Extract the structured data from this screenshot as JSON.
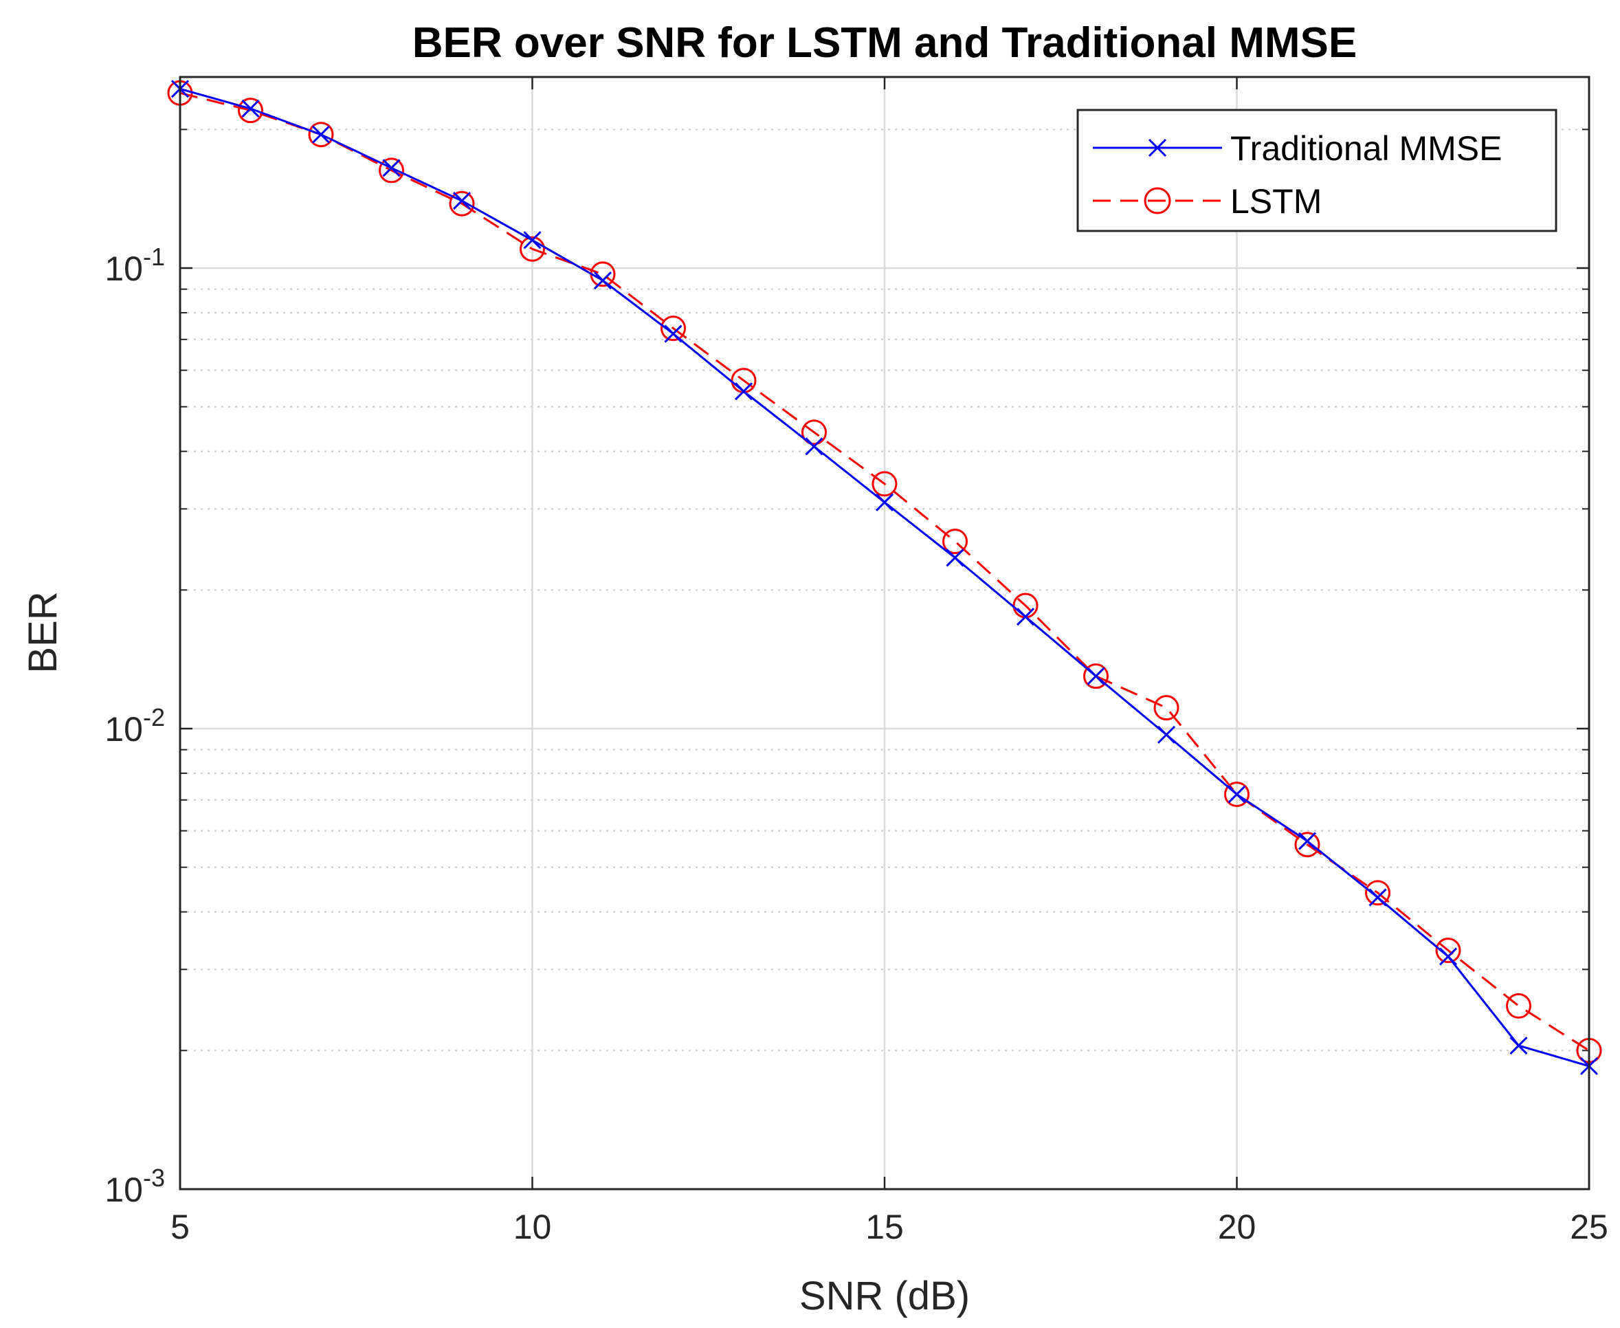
{
  "chart_data": {
    "type": "line",
    "title": "BER over SNR for LSTM and Traditional MMSE",
    "xlabel": "SNR (dB)",
    "ylabel": "BER",
    "xlim": [
      5,
      25
    ],
    "ylim": [
      0.001,
      0.26
    ],
    "yscale": "log",
    "grid": true,
    "legend_position": "top-right",
    "x_ticks": [
      5,
      10,
      15,
      20,
      25
    ],
    "x_tick_labels": [
      "5",
      "10",
      "15",
      "20",
      "25"
    ],
    "y_ticks": [
      0.001,
      0.01,
      0.1
    ],
    "y_tick_labels": [
      {
        "base": "10",
        "exp": "-3"
      },
      {
        "base": "10",
        "exp": "-2"
      },
      {
        "base": "10",
        "exp": "-1"
      }
    ],
    "x": [
      5,
      6,
      7,
      8,
      9,
      10,
      11,
      12,
      13,
      14,
      15,
      16,
      17,
      18,
      19,
      20,
      21,
      22,
      23,
      24,
      25
    ],
    "series": [
      {
        "name": "Traditional MMSE",
        "color": "#0000ff",
        "marker": "x",
        "line_style": "solid",
        "values": [
          0.245,
          0.222,
          0.195,
          0.165,
          0.14,
          0.115,
          0.094,
          0.072,
          0.054,
          0.041,
          0.031,
          0.0235,
          0.0175,
          0.013,
          0.0097,
          0.0072,
          0.0057,
          0.0043,
          0.0032,
          0.00205,
          0.00185
        ]
      },
      {
        "name": "LSTM",
        "color": "#ff0000",
        "marker": "o",
        "line_style": "dashed",
        "values": [
          0.24,
          0.22,
          0.195,
          0.163,
          0.138,
          0.11,
          0.097,
          0.074,
          0.057,
          0.044,
          0.034,
          0.0255,
          0.0185,
          0.013,
          0.0111,
          0.0072,
          0.0056,
          0.0044,
          0.0033,
          0.0025,
          0.002
        ]
      }
    ]
  }
}
